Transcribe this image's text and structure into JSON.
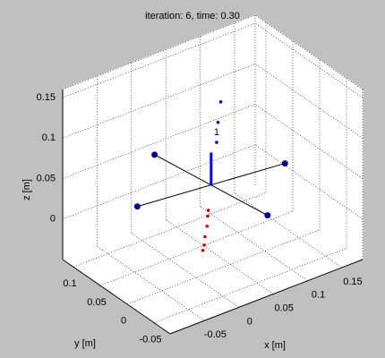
{
  "chart_data": {
    "type": "scatter3d",
    "title": "iteration: 6, time: 0.30",
    "xlabel": "x [m]",
    "ylabel": "y [m]",
    "zlabel": "z [m]",
    "xlim": [
      -0.1,
      0.18
    ],
    "ylim": [
      -0.08,
      0.12
    ],
    "zlim": [
      -0.05,
      0.16
    ],
    "xticks": [
      -0.05,
      0,
      0.05,
      0.1,
      0.15
    ],
    "yticks": [
      -0.05,
      0,
      0.05,
      0.1
    ],
    "zticks": [
      0,
      0.05,
      0.1,
      0.15
    ],
    "grid": true,
    "series": [
      {
        "color": "#0000cc",
        "x": [
          0.044,
          0.04,
          0.038
        ],
        "y": [
          0.01,
          0.01,
          0.01
        ],
        "z": [
          0.148,
          0.124,
          0.1
        ]
      },
      {
        "color": "#dd0000",
        "x": [
          0.026,
          0.025,
          0.024,
          0.021,
          0.02,
          0.018
        ],
        "y": [
          0.01,
          0.01,
          0.01,
          0.01,
          0.01,
          0.01
        ],
        "z": [
          0.02,
          0.013,
          0.001,
          -0.011,
          -0.021,
          -0.027
        ]
      }
    ],
    "quad": {
      "color": "#00008b",
      "center": {
        "x": 0.03,
        "y": 0.01,
        "z": 0.05
      },
      "thrust_z": 0.09,
      "rotors": {
        "x": [
          0.128,
          -0.068,
          0.0416,
          0.018
        ],
        "y": [
          -0.002,
          0.022,
          -0.0802,
          0.1
        ],
        "z": [
          0.05,
          0.05,
          0.05,
          0.05
        ]
      }
    },
    "annotations": [
      {
        "text": "1",
        "x": 0.038,
        "y": 0.01,
        "z": 0.112
      }
    ]
  }
}
